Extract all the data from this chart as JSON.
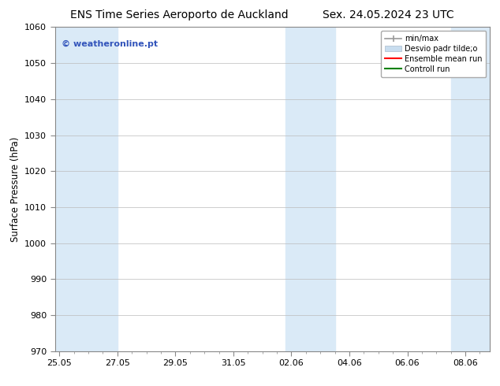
{
  "title_left": "ENS Time Series Aeroporto de Auckland",
  "title_right": "Sex. 24.05.2024 23 UTC",
  "ylabel": "Surface Pressure (hPa)",
  "ylim": [
    970,
    1060
  ],
  "yticks": [
    970,
    980,
    990,
    1000,
    1010,
    1020,
    1030,
    1040,
    1050,
    1060
  ],
  "xtick_labels": [
    "25.05",
    "27.05",
    "29.05",
    "31.05",
    "02.06",
    "04.06",
    "06.06",
    "08.06"
  ],
  "xtick_positions": [
    0,
    2,
    4,
    6,
    8,
    10,
    12,
    14
  ],
  "xmin": -0.15,
  "xmax": 14.85,
  "shaded_bands": [
    {
      "x_start": -0.15,
      "x_end": 2.0
    },
    {
      "x_start": 7.8,
      "x_end": 9.5
    },
    {
      "x_start": 13.5,
      "x_end": 14.85
    }
  ],
  "shade_color": "#daeaf7",
  "watermark_text": "© weatheronline.pt",
  "watermark_color": "#3355bb",
  "bg_color": "#ffffff",
  "grid_color": "#bbbbbb",
  "title_fontsize": 10,
  "tick_fontsize": 8,
  "ylabel_fontsize": 8.5
}
